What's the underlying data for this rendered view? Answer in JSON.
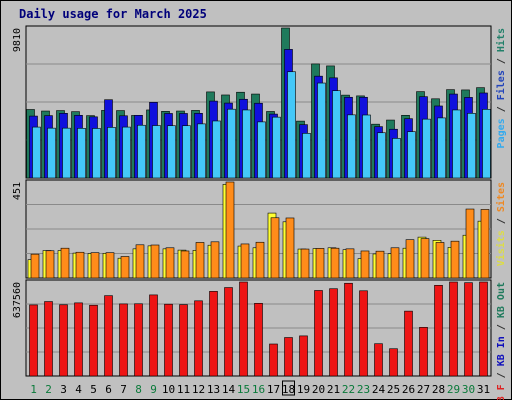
{
  "chart_data": {
    "type": "bar",
    "title": "Daily usage for March 2025",
    "days": [
      "1",
      "2",
      "3",
      "4",
      "5",
      "6",
      "7",
      "8",
      "9",
      "10",
      "11",
      "12",
      "13",
      "14",
      "15",
      "16",
      "17",
      "18",
      "19",
      "20",
      "21",
      "22",
      "23",
      "24",
      "25",
      "26",
      "27",
      "28",
      "29",
      "30",
      "31"
    ],
    "weekend_days": [
      1,
      2,
      8,
      9,
      15,
      16,
      22,
      23,
      29,
      30
    ],
    "today_index": 17,
    "panels": [
      {
        "id": "requests",
        "max_label": "9810",
        "legend": [
          {
            "text": "Pages",
            "color": "#33aaee"
          },
          {
            "text": " / ",
            "color": "#333333"
          },
          {
            "text": "Files",
            "color": "#2244bb"
          },
          {
            "text": " / ",
            "color": "#333333"
          },
          {
            "text": "Hits",
            "color": "#22806a"
          }
        ],
        "max": 9810,
        "series": [
          {
            "name": "Hits",
            "color": "#1f7a5c",
            "values": [
              4480,
              4380,
              4410,
              4340,
              4080,
              4420,
              4410,
              4090,
              4450,
              4360,
              4380,
              4420,
              5630,
              5430,
              5610,
              5490,
              4350,
              9810,
              3720,
              7460,
              7330,
              5420,
              5370,
              3520,
              3790,
              4100,
              5650,
              5180,
              5780,
              5760,
              5910
            ]
          },
          {
            "name": "Files",
            "color": "#1010dd",
            "values": [
              4050,
              4080,
              4230,
              4100,
              4000,
              5120,
              4070,
              4100,
              4950,
              4220,
              4220,
              4230,
              5030,
              4900,
              5150,
              4890,
              4180,
              8410,
              3490,
              6660,
              6550,
              5280,
              5280,
              3360,
              3190,
              3880,
              5320,
              4710,
              5490,
              5270,
              5560
            ]
          },
          {
            "name": "Pages",
            "color": "#44c8f8",
            "values": [
              3330,
              3260,
              3260,
              3250,
              3240,
              3310,
              3330,
              3450,
              3430,
              3420,
              3420,
              3540,
              3730,
              4500,
              4450,
              3670,
              3980,
              6950,
              2920,
              6210,
              5710,
              4130,
              4120,
              2960,
              2590,
              3030,
              3850,
              3930,
              4450,
              4230,
              4490
            ]
          }
        ]
      },
      {
        "id": "visits",
        "max_label": "451",
        "legend": [
          {
            "text": "Visits",
            "color": "#dddd44"
          },
          {
            "text": " / ",
            "color": "#333333"
          },
          {
            "text": "Sites",
            "color": "#ee8822"
          }
        ],
        "max": 451,
        "series": [
          {
            "name": "Visits",
            "color": "#ffff33",
            "values": [
              86,
              129,
              129,
              117,
              115,
              116,
              93,
              137,
              151,
              137,
              131,
              130,
              154,
              440,
              150,
              142,
              305,
              264,
              136,
              138,
              142,
              133,
              91,
              113,
              114,
              140,
              192,
              177,
              144,
              201,
              267
            ]
          },
          {
            "name": "Sites",
            "color": "#ff8c1a",
            "values": [
              112,
              128,
              140,
              121,
              119,
              119,
              101,
              156,
              155,
              142,
              127,
              167,
              170,
              451,
              160,
              168,
              283,
              282,
              136,
              139,
              140,
              137,
              127,
              126,
              142,
              180,
              185,
              167,
              173,
              324,
              322
            ]
          }
        ]
      },
      {
        "id": "kbytes",
        "max_label": "637560",
        "legend": [
          {
            "text": "KB F",
            "color": "#dd2222"
          },
          {
            "text": " / ",
            "color": "#333333"
          },
          {
            "text": "KB In",
            "color": "#1010bb"
          },
          {
            "text": " / ",
            "color": "#333333"
          },
          {
            "text": "KB Out",
            "color": "#1f7a5c"
          }
        ],
        "max": 637560,
        "series": [
          {
            "name": "KB F",
            "color": "#ee1515",
            "values": [
              482000,
              505000,
              483000,
              496000,
              480000,
              545000,
              489000,
              490000,
              550000,
              487000,
              484000,
              510000,
              574000,
              600000,
              637560,
              493000,
              217000,
              261000,
              272000,
              580000,
              592000,
              629000,
              578000,
              219000,
              185000,
              440000,
              330000,
              615000,
              637560,
              633000,
              637560
            ]
          }
        ]
      }
    ]
  }
}
